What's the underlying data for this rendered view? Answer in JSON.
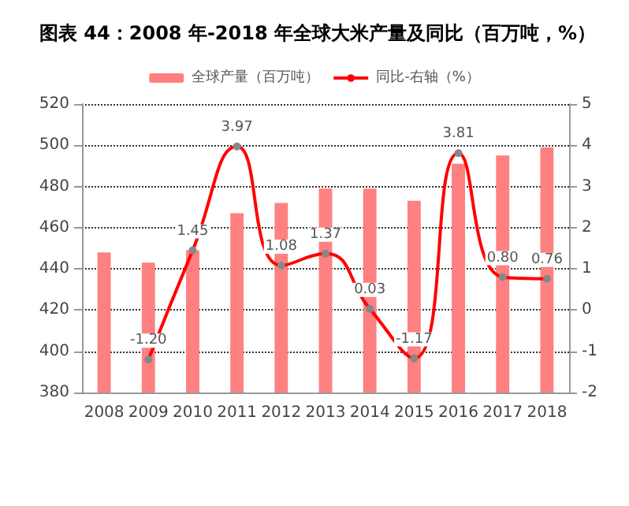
{
  "chart_data": {
    "type": "bar",
    "title": "图表 44：2008 年-2018 年全球大米产量及同比（百万吨，%）",
    "categories": [
      "2008",
      "2009",
      "2010",
      "2011",
      "2012",
      "2013",
      "2014",
      "2015",
      "2016",
      "2017",
      "2018"
    ],
    "series": [
      {
        "name": "全球产量（百万吨）",
        "color": "#ff8080",
        "values": [
          448,
          443,
          449,
          467,
          472,
          479,
          479,
          473,
          491,
          495,
          499
        ]
      },
      {
        "name": "同比-右轴（%）",
        "type": "line",
        "axis": "y2",
        "color": "#ff0000",
        "marker": "circle",
        "values": [
          null,
          -1.2,
          1.45,
          3.97,
          1.08,
          1.37,
          0.03,
          -1.17,
          3.81,
          0.8,
          0.76
        ],
        "value_labels": [
          null,
          "-1.20",
          "1.45",
          "3.97",
          "1.08",
          "1.37",
          "0.03",
          "-1.17",
          "3.81",
          "0.80",
          "0.76"
        ]
      }
    ],
    "ylim": [
      380,
      520
    ],
    "yticks": [
      380,
      400,
      420,
      440,
      460,
      480,
      500,
      520
    ],
    "y2lim": [
      -2,
      5
    ],
    "y2ticks": [
      -2,
      -1,
      0,
      1,
      2,
      3,
      4,
      5
    ],
    "grid": "y",
    "legend": "top"
  }
}
